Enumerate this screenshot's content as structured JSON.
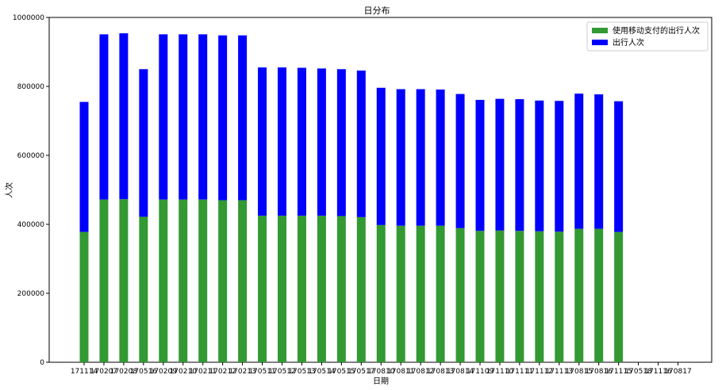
{
  "chart_data": {
    "type": "bar",
    "stacked": true,
    "title": "日分布",
    "xlabel": "日期",
    "ylabel": "人次",
    "ylim": [
      0,
      1000000
    ],
    "yticks": [
      0,
      200000,
      400000,
      600000,
      800000,
      1000000
    ],
    "yticklabels": [
      "0",
      "200000",
      "400000",
      "600000",
      "800000",
      "1000000"
    ],
    "categories": [
      "171114",
      "170207",
      "170208",
      "170516",
      "170209",
      "170210",
      "170211",
      "170212",
      "170213",
      "170511",
      "170512",
      "170513",
      "170514",
      "170515",
      "170517",
      "170810",
      "170811",
      "170812",
      "170813",
      "170814",
      "171109",
      "171110",
      "171111",
      "171112",
      "171113",
      "170815",
      "170816",
      "171115",
      "170518",
      "171116",
      "170817"
    ],
    "grid": false,
    "legend_position": "top-right",
    "series": [
      {
        "name": "使用移动支付的出行人次",
        "color": "#339933",
        "values": [
          378000,
          472000,
          473000,
          422000,
          472000,
          472000,
          472000,
          470000,
          470000,
          425000,
          425000,
          425000,
          425000,
          424000,
          421000,
          398000,
          396000,
          396000,
          396000,
          389000,
          381000,
          382000,
          381000,
          380000,
          379000,
          387000,
          387000,
          378000,
          0,
          0,
          0
        ]
      },
      {
        "name": "出行人次",
        "color": "#0000ff",
        "values": [
          377000,
          479000,
          481000,
          428000,
          479000,
          479000,
          479000,
          478000,
          478000,
          430000,
          430000,
          429000,
          427000,
          426000,
          425000,
          398000,
          396000,
          396000,
          395000,
          389000,
          380000,
          382000,
          382000,
          379000,
          379000,
          392000,
          390000,
          379000,
          0,
          0,
          0
        ]
      }
    ]
  }
}
